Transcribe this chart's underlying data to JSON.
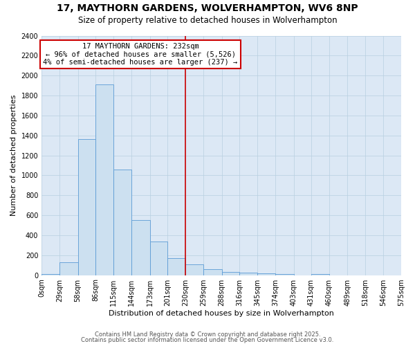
{
  "title": "17, MAYTHORN GARDENS, WOLVERHAMPTON, WV6 8NP",
  "subtitle": "Size of property relative to detached houses in Wolverhampton",
  "xlabel": "Distribution of detached houses by size in Wolverhampton",
  "ylabel": "Number of detached properties",
  "bin_labels": [
    "0sqm",
    "29sqm",
    "58sqm",
    "86sqm",
    "115sqm",
    "144sqm",
    "173sqm",
    "201sqm",
    "230sqm",
    "259sqm",
    "288sqm",
    "316sqm",
    "345sqm",
    "374sqm",
    "403sqm",
    "431sqm",
    "460sqm",
    "489sqm",
    "518sqm",
    "546sqm",
    "575sqm"
  ],
  "bin_edges": [
    0,
    29,
    58,
    86,
    115,
    144,
    173,
    201,
    230,
    259,
    288,
    316,
    345,
    374,
    403,
    431,
    460,
    489,
    518,
    546,
    575
  ],
  "bar_heights": [
    10,
    130,
    1360,
    1910,
    1055,
    555,
    335,
    170,
    105,
    60,
    35,
    25,
    15,
    10,
    0,
    10,
    0,
    0,
    0,
    0,
    10
  ],
  "bar_color": "#cce0f0",
  "bar_edgecolor": "#5b9bd5",
  "property_line_x": 230,
  "annotation_title": "17 MAYTHORN GARDENS: 232sqm",
  "annotation_line1": "← 96% of detached houses are smaller (5,526)",
  "annotation_line2": "4% of semi-detached houses are larger (237) →",
  "annotation_box_facecolor": "#ffffff",
  "annotation_box_edgecolor": "#cc0000",
  "vline_color": "#cc0000",
  "background_color": "#ffffff",
  "plot_bg_color": "#dce8f5",
  "grid_color": "#b8cfe0",
  "footer1": "Contains HM Land Registry data © Crown copyright and database right 2025.",
  "footer2": "Contains public sector information licensed under the Open Government Licence v3.0.",
  "ylim": [
    0,
    2400
  ],
  "yticks": [
    0,
    200,
    400,
    600,
    800,
    1000,
    1200,
    1400,
    1600,
    1800,
    2000,
    2200,
    2400
  ],
  "title_fontsize": 10,
  "subtitle_fontsize": 8.5,
  "axis_label_fontsize": 8,
  "tick_fontsize": 7,
  "annotation_fontsize": 7.5,
  "footer_fontsize": 6
}
